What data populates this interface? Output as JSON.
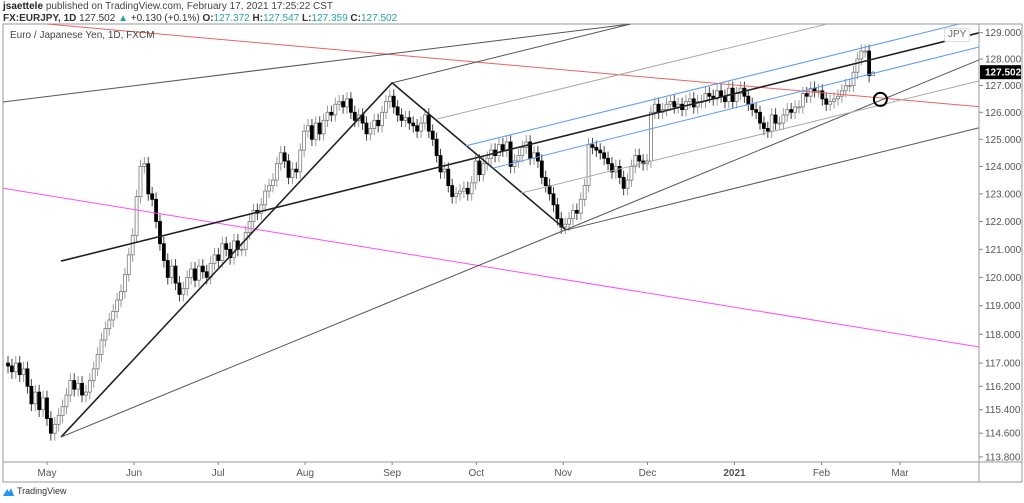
{
  "header": {
    "author": "jsaettele",
    "published_text": "published on TradingView.com, February 17, 2021 17:25:22 CST",
    "symbol": "FX:EURJPY, 1D",
    "last": "127.502",
    "change_icon": "triangle-up-icon",
    "change_glyph": "▲",
    "change": "+0.130 (+0.1%)",
    "o_label": "O:",
    "o": "127.372",
    "h_label": "H:",
    "h": "127.547",
    "l_label": "L:",
    "l": "127.359",
    "c_label": "C:",
    "c": "127.502"
  },
  "pane_title": "Euro / Japanese Yen, 1D, FXCM",
  "currency_badge": "JPY",
  "footer": {
    "logo_text": "TradingView"
  },
  "colors": {
    "up_body": "#ffffff",
    "up_border": "#7a7a7a",
    "down": "#000000",
    "change": "#26a69a",
    "blue_channel": "#5b9cf6",
    "red_line": "#f26060",
    "magenta_line": "#ff4dff"
  },
  "chart_data": {
    "type": "candlestick",
    "log_scale": true,
    "ylim": [
      113.8,
      129.3
    ],
    "y_ticks": [
      "129.000",
      "128.000",
      "127.000",
      "126.000",
      "125.000",
      "124.000",
      "123.000",
      "122.000",
      "121.000",
      "120.000",
      "119.000",
      "118.000",
      "117.000",
      "116.200",
      "115.400",
      "114.600",
      "113.800"
    ],
    "x_ticks": [
      {
        "label": "May",
        "date": "2020-05-01"
      },
      {
        "label": "Jun",
        "date": "2020-06-01"
      },
      {
        "label": "Jul",
        "date": "2020-07-01"
      },
      {
        "label": "Aug",
        "date": "2020-08-01"
      },
      {
        "label": "Sep",
        "date": "2020-09-01"
      },
      {
        "label": "Oct",
        "date": "2020-10-01"
      },
      {
        "label": "Nov",
        "date": "2020-11-01"
      },
      {
        "label": "Dec",
        "date": "2020-12-01"
      },
      {
        "label": "2021",
        "date": "2021-01-01",
        "bold": true
      },
      {
        "label": "Feb",
        "date": "2021-02-01"
      },
      {
        "label": "Mar",
        "date": "2021-03-01"
      }
    ],
    "last_price_label": "127.502",
    "last_bar": {
      "open": 127.372,
      "high": 127.547,
      "low": 127.359,
      "close": 127.502
    },
    "closes": [
      116.9,
      116.7,
      117.0,
      116.6,
      116.8,
      116.2,
      115.6,
      116.0,
      115.4,
      115.8,
      115.1,
      114.6,
      114.9,
      115.2,
      115.5,
      115.9,
      116.4,
      116.1,
      116.3,
      115.9,
      116.0,
      116.4,
      116.8,
      117.3,
      117.8,
      118.2,
      118.5,
      118.8,
      119.2,
      119.5,
      120.1,
      120.8,
      121.5,
      122.9,
      124.0,
      124.1,
      123.0,
      122.8,
      122.0,
      121.2,
      120.6,
      120.0,
      120.4,
      119.8,
      119.4,
      119.6,
      120.0,
      120.3,
      119.9,
      120.4,
      120.2,
      120.0,
      120.5,
      120.8,
      120.6,
      121.2,
      121.0,
      120.7,
      121.3,
      121.0,
      121.0,
      121.6,
      122.0,
      122.4,
      122.3,
      122.6,
      123.1,
      123.3,
      123.5,
      124.1,
      124.5,
      124.2,
      123.6,
      123.9,
      123.8,
      124.6,
      125.3,
      125.5,
      125.0,
      125.6,
      125.2,
      125.7,
      126.0,
      125.9,
      126.3,
      126.4,
      126.2,
      126.5,
      126.0,
      125.7,
      125.9,
      125.6,
      125.2,
      125.4,
      125.7,
      125.5,
      126.0,
      126.4,
      126.6,
      126.2,
      125.9,
      125.7,
      125.8,
      125.6,
      125.5,
      125.3,
      125.6,
      125.9,
      125.3,
      125.0,
      124.4,
      123.8,
      123.9,
      123.3,
      122.9,
      123.0,
      123.1,
      123.2,
      123.0,
      123.4,
      124.2,
      123.7,
      124.1,
      124.3,
      124.6,
      124.4,
      124.8,
      124.6,
      124.9,
      124.0,
      124.2,
      124.4,
      124.7,
      124.9,
      124.3,
      124.5,
      124.2,
      123.6,
      123.3,
      123.0,
      122.6,
      122.1,
      121.8,
      121.9,
      122.1,
      122.4,
      122.3,
      122.8,
      123.3,
      124.8,
      124.7,
      124.6,
      124.5,
      124.3,
      124.1,
      123.8,
      124.0,
      123.6,
      123.2,
      123.5,
      124.0,
      124.4,
      124.2,
      124.1,
      124.2,
      126.0,
      126.3,
      126.0,
      126.1,
      126.3,
      126.4,
      126.2,
      126.3,
      126.1,
      126.4,
      126.5,
      126.2,
      126.4,
      126.4,
      126.7,
      126.6,
      126.5,
      126.8,
      126.6,
      126.4,
      126.9,
      126.4,
      126.7,
      126.9,
      126.6,
      126.3,
      126.1,
      126.0,
      125.6,
      125.4,
      125.3,
      125.9,
      125.6,
      125.6,
      125.9,
      126.1,
      126.0,
      126.2,
      126.2,
      126.7,
      126.6,
      126.9,
      126.8,
      126.8,
      126.5,
      126.3,
      126.4,
      126.5,
      126.6,
      126.8,
      127.0,
      127.0,
      127.5,
      128.0,
      128.3,
      128.3,
      127.372,
      127.502
    ],
    "drawings": [
      {
        "kind": "trendline",
        "color": "#f26060",
        "width": 1,
        "points": [
          [
            "2020-05-01",
            129.33
          ],
          [
            "2021-03-29",
            126.21
          ]
        ]
      },
      {
        "kind": "trendline",
        "color": "#ff4dff",
        "width": 1,
        "points": [
          [
            "2020-04-15",
            123.21
          ],
          [
            "2021-03-29",
            117.56
          ]
        ]
      },
      {
        "kind": "trendline",
        "color": "#222222",
        "width": 1.6,
        "points": [
          [
            "2020-05-06",
            120.58
          ],
          [
            "2021-03-29",
            128.99
          ]
        ]
      },
      {
        "kind": "path",
        "color": "#222222",
        "width": 1.6,
        "points": [
          [
            "2020-05-06",
            114.47
          ],
          [
            "2020-09-01",
            127.1
          ],
          [
            "2020-11-02",
            121.69
          ]
        ]
      },
      {
        "kind": "trendline",
        "color": "#555555",
        "width": 1,
        "points": [
          [
            "2020-04-15",
            126.38
          ],
          [
            "2020-11-25",
            129.33
          ]
        ]
      },
      {
        "kind": "trendline",
        "color": "#555555",
        "width": 1,
        "points": [
          [
            "2020-09-01",
            127.1
          ],
          [
            "2020-11-25",
            129.33
          ]
        ]
      },
      {
        "kind": "trendline",
        "color": "#555555",
        "width": 1,
        "points": [
          [
            "2020-05-06",
            114.47
          ],
          [
            "2021-03-29",
            127.96
          ]
        ]
      },
      {
        "kind": "trendline",
        "color": "#555555",
        "width": 1,
        "points": [
          [
            "2020-11-02",
            121.69
          ],
          [
            "2021-03-29",
            125.42
          ]
        ]
      },
      {
        "kind": "trendline",
        "color": "#aaaaaa",
        "width": 1,
        "points": [
          [
            "2020-09-17",
            125.75
          ],
          [
            "2021-02-03",
            129.33
          ]
        ]
      },
      {
        "kind": "trendline",
        "color": "#aaaaaa",
        "width": 1,
        "points": [
          [
            "2020-10-17",
            123.03
          ],
          [
            "2021-03-29",
            127.17
          ]
        ]
      },
      {
        "kind": "trendline",
        "color": "#5b9cf6",
        "width": 1,
        "points": [
          [
            "2020-09-27",
            124.75
          ],
          [
            "2021-03-22",
            129.33
          ]
        ]
      },
      {
        "kind": "trendline",
        "color": "#5b9cf6",
        "width": 1,
        "points": [
          [
            "2020-10-07",
            123.94
          ],
          [
            "2021-03-29",
            128.45
          ]
        ]
      },
      {
        "kind": "circle",
        "color": "#000000",
        "width": 2,
        "points": [
          [
            "2021-02-22",
            126.48
          ]
        ]
      }
    ]
  }
}
